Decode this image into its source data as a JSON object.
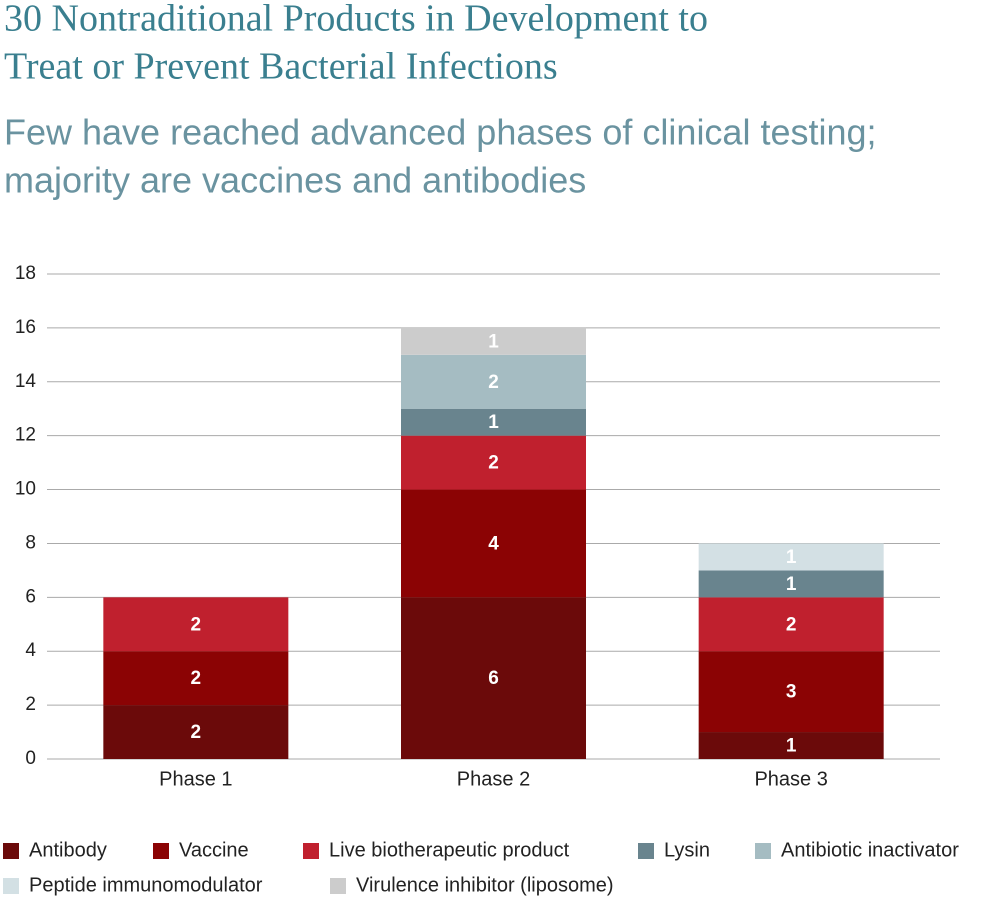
{
  "chart_data": {
    "type": "stacked_bar",
    "title": [
      "30 Nontraditional Products in Development to",
      "Treat or Prevent Bacterial Infections"
    ],
    "subtitle": [
      "Few have reached advanced phases of clinical testing;",
      "majority are vaccines and antibodies"
    ],
    "categories": [
      "Phase 1",
      "Phase 2",
      "Phase 3"
    ],
    "series": [
      {
        "name": "Antibody",
        "color": "#6b0a0a",
        "values": [
          2,
          6,
          1
        ]
      },
      {
        "name": "Vaccine",
        "color": "#8b0304",
        "values": [
          2,
          4,
          3
        ]
      },
      {
        "name": "Live biotherapeutic product",
        "color": "#c0202e",
        "values": [
          2,
          2,
          2
        ]
      },
      {
        "name": "Lysin",
        "color": "#69848e",
        "values": [
          null,
          1,
          1
        ]
      },
      {
        "name": "Antibiotic inactivator",
        "color": "#a5bcc2",
        "values": [
          null,
          2,
          null
        ]
      },
      {
        "name": "Peptide immunomodulator",
        "color": "#d3e0e4",
        "values": [
          null,
          null,
          1
        ]
      },
      {
        "name": "Virulence inhibitor (liposome)",
        "color": "#cccccc",
        "values": [
          null,
          1,
          null
        ]
      }
    ],
    "ylim": [
      0,
      18
    ],
    "yticks": [
      0,
      2,
      4,
      6,
      8,
      10,
      12,
      14,
      16,
      18
    ],
    "grid": true
  }
}
